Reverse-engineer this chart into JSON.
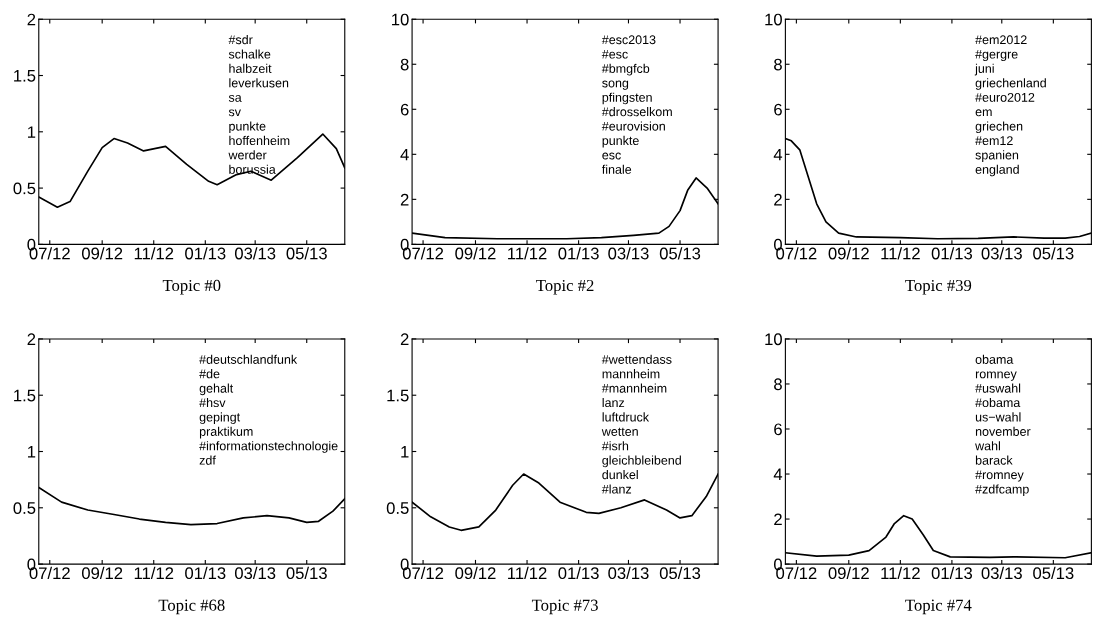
{
  "chart_data": [
    {
      "type": "line",
      "xlabel": "Topic #0",
      "x": [
        "2012-06-18",
        "2012-07-10",
        "2012-07-25",
        "2012-08-15",
        "2012-09-01",
        "2012-09-15",
        "2012-10-01",
        "2012-10-20",
        "2012-11-15",
        "2012-12-10",
        "2013-01-05",
        "2013-01-15",
        "2013-02-07",
        "2013-02-24",
        "2013-03-20",
        "2013-04-20",
        "2013-05-20",
        "2013-06-05",
        "2013-06-15"
      ],
      "series": [
        {
          "color": "#000000",
          "values": [
            0.42,
            0.33,
            0.38,
            0.65,
            0.86,
            0.94,
            0.9,
            0.83,
            0.87,
            0.71,
            0.56,
            0.53,
            0.62,
            0.65,
            0.57,
            0.77,
            0.98,
            0.85,
            0.68
          ]
        }
      ],
      "xlim": [
        "2012-06-18",
        "2013-06-15"
      ],
      "xticks": [
        {
          "value": "2012-07-01",
          "label": "07/12"
        },
        {
          "value": "2012-09-01",
          "label": "09/12"
        },
        {
          "value": "2012-11-01",
          "label": "11/12"
        },
        {
          "value": "2013-01-01",
          "label": "01/13"
        },
        {
          "value": "2013-03-01",
          "label": "03/13"
        },
        {
          "value": "2013-05-01",
          "label": "05/13"
        }
      ],
      "ylim": [
        0,
        2
      ],
      "yticks": [
        0,
        0.5,
        1,
        1.5,
        2
      ],
      "annotations": [
        "#sdr",
        "schalke",
        "halbzeit",
        "leverkusen",
        "sa",
        "sv",
        "punkte",
        "hoffenheim",
        "werder",
        "borussia"
      ]
    },
    {
      "type": "line",
      "xlabel": "Topic #2",
      "x": [
        "2012-06-18",
        "2012-07-27",
        "2012-09-27",
        "2012-12-18",
        "2013-01-28",
        "2013-03-07",
        "2013-04-06",
        "2013-04-18",
        "2013-05-01",
        "2013-05-10",
        "2013-05-20",
        "2013-06-02",
        "2013-06-15"
      ],
      "series": [
        {
          "color": "#000000",
          "values": [
            0.5,
            0.3,
            0.25,
            0.25,
            0.3,
            0.4,
            0.5,
            0.8,
            1.5,
            2.4,
            2.95,
            2.5,
            1.8
          ]
        }
      ],
      "xlim": [
        "2012-06-18",
        "2013-06-15"
      ],
      "xticks": [
        {
          "value": "2012-07-01",
          "label": "07/12"
        },
        {
          "value": "2012-09-01",
          "label": "09/12"
        },
        {
          "value": "2012-11-01",
          "label": "11/12"
        },
        {
          "value": "2013-01-01",
          "label": "01/13"
        },
        {
          "value": "2013-03-01",
          "label": "03/13"
        },
        {
          "value": "2013-05-01",
          "label": "05/13"
        }
      ],
      "ylim": [
        0,
        10
      ],
      "yticks": [
        0,
        2,
        4,
        6,
        8,
        10
      ],
      "annotations": [
        "#esc2013",
        "#esc",
        "#bmgfcb",
        "song",
        "pfingsten",
        "#drosselkom",
        "#eurovision",
        "punkte",
        "esc",
        "finale"
      ]
    },
    {
      "type": "line",
      "xlabel": "Topic #39",
      "x": [
        "2012-06-18",
        "2012-06-25",
        "2012-07-05",
        "2012-07-15",
        "2012-07-25",
        "2012-08-05",
        "2012-08-20",
        "2012-09-10",
        "2012-11-01",
        "2012-12-15",
        "2013-02-01",
        "2013-03-15",
        "2013-04-20",
        "2013-05-15",
        "2013-06-01",
        "2013-06-15"
      ],
      "series": [
        {
          "color": "#000000",
          "values": [
            4.7,
            4.6,
            4.2,
            3.0,
            1.8,
            1.0,
            0.5,
            0.33,
            0.3,
            0.25,
            0.27,
            0.33,
            0.28,
            0.28,
            0.35,
            0.5
          ]
        }
      ],
      "xlim": [
        "2012-06-18",
        "2013-06-15"
      ],
      "xticks": [
        {
          "value": "2012-07-01",
          "label": "07/12"
        },
        {
          "value": "2012-09-01",
          "label": "09/12"
        },
        {
          "value": "2012-11-01",
          "label": "11/12"
        },
        {
          "value": "2013-01-01",
          "label": "01/13"
        },
        {
          "value": "2013-03-01",
          "label": "03/13"
        },
        {
          "value": "2013-05-01",
          "label": "05/13"
        }
      ],
      "ylim": [
        0,
        10
      ],
      "yticks": [
        0,
        2,
        4,
        6,
        8,
        10
      ],
      "annotations": [
        "#em2012",
        "#gergre",
        "juni",
        "griechenland",
        "#euro2012",
        "em",
        "griechen",
        "#em12",
        "spanien",
        "england"
      ]
    },
    {
      "type": "line",
      "xlabel": "Topic #68",
      "x": [
        "2012-06-18",
        "2012-07-15",
        "2012-08-15",
        "2012-09-15",
        "2012-10-15",
        "2012-11-15",
        "2012-12-15",
        "2013-01-15",
        "2013-02-15",
        "2013-03-15",
        "2013-04-10",
        "2013-05-01",
        "2013-05-15",
        "2013-06-01",
        "2013-06-15"
      ],
      "series": [
        {
          "color": "#000000",
          "values": [
            0.68,
            0.55,
            0.48,
            0.44,
            0.4,
            0.37,
            0.35,
            0.36,
            0.41,
            0.43,
            0.41,
            0.37,
            0.38,
            0.47,
            0.58
          ]
        }
      ],
      "xlim": [
        "2012-06-18",
        "2013-06-15"
      ],
      "xticks": [
        {
          "value": "2012-07-01",
          "label": "07/12"
        },
        {
          "value": "2012-09-01",
          "label": "09/12"
        },
        {
          "value": "2012-11-01",
          "label": "11/12"
        },
        {
          "value": "2013-01-01",
          "label": "01/13"
        },
        {
          "value": "2013-03-01",
          "label": "03/13"
        },
        {
          "value": "2013-05-01",
          "label": "05/13"
        }
      ],
      "ylim": [
        0,
        2
      ],
      "yticks": [
        0,
        0.5,
        1,
        1.5,
        2
      ],
      "annotations": [
        "#deutschlandfunk",
        "#de",
        "gehalt",
        "#hsv",
        "gepingt",
        "praktikum",
        "#informationstechnologie",
        "zdf"
      ]
    },
    {
      "type": "line",
      "xlabel": "Topic #73",
      "x": [
        "2012-06-18",
        "2012-07-10",
        "2012-08-01",
        "2012-08-15",
        "2012-09-05",
        "2012-09-25",
        "2012-10-15",
        "2012-10-28",
        "2012-11-15",
        "2012-12-10",
        "2013-01-10",
        "2013-01-25",
        "2013-02-20",
        "2013-03-20",
        "2013-04-15",
        "2013-05-01",
        "2013-05-15",
        "2013-06-01",
        "2013-06-15"
      ],
      "series": [
        {
          "color": "#000000",
          "values": [
            0.55,
            0.42,
            0.33,
            0.3,
            0.33,
            0.48,
            0.7,
            0.8,
            0.72,
            0.55,
            0.46,
            0.45,
            0.5,
            0.57,
            0.48,
            0.41,
            0.43,
            0.6,
            0.8
          ]
        }
      ],
      "xlim": [
        "2012-06-18",
        "2013-06-15"
      ],
      "xticks": [
        {
          "value": "2012-07-01",
          "label": "07/12"
        },
        {
          "value": "2012-09-01",
          "label": "09/12"
        },
        {
          "value": "2012-11-01",
          "label": "11/12"
        },
        {
          "value": "2013-01-01",
          "label": "01/13"
        },
        {
          "value": "2013-03-01",
          "label": "03/13"
        },
        {
          "value": "2013-05-01",
          "label": "05/13"
        }
      ],
      "ylim": [
        0,
        2
      ],
      "yticks": [
        0,
        0.5,
        1,
        1.5,
        2
      ],
      "annotations": [
        "#wettendass",
        "mannheim",
        "#mannheim",
        "lanz",
        "luftdruck",
        "wetten",
        "#isrh",
        "gleichbleibend",
        "dunkel",
        "#lanz"
      ]
    },
    {
      "type": "line",
      "xlabel": "Topic #74",
      "x": [
        "2012-06-18",
        "2012-07-25",
        "2012-09-01",
        "2012-09-25",
        "2012-10-15",
        "2012-10-25",
        "2012-11-05",
        "2012-11-15",
        "2012-11-28",
        "2012-12-10",
        "2012-12-30",
        "2013-02-15",
        "2013-03-15",
        "2013-05-15",
        "2013-06-15"
      ],
      "series": [
        {
          "color": "#000000",
          "values": [
            0.5,
            0.35,
            0.4,
            0.6,
            1.2,
            1.8,
            2.15,
            2.0,
            1.3,
            0.6,
            0.32,
            0.3,
            0.32,
            0.28,
            0.5
          ]
        }
      ],
      "xlim": [
        "2012-06-18",
        "2013-06-15"
      ],
      "xticks": [
        {
          "value": "2012-07-01",
          "label": "07/12"
        },
        {
          "value": "2012-09-01",
          "label": "09/12"
        },
        {
          "value": "2012-11-01",
          "label": "11/12"
        },
        {
          "value": "2013-01-01",
          "label": "01/13"
        },
        {
          "value": "2013-03-01",
          "label": "03/13"
        },
        {
          "value": "2013-05-01",
          "label": "05/13"
        }
      ],
      "ylim": [
        0,
        10
      ],
      "yticks": [
        0,
        2,
        4,
        6,
        8,
        10
      ],
      "annotations": [
        "obama",
        "romney",
        "#uswahl",
        "#obama",
        "us−wahl",
        "november",
        "wahl",
        "barack",
        "#romney",
        "#zdfcamp"
      ]
    }
  ]
}
